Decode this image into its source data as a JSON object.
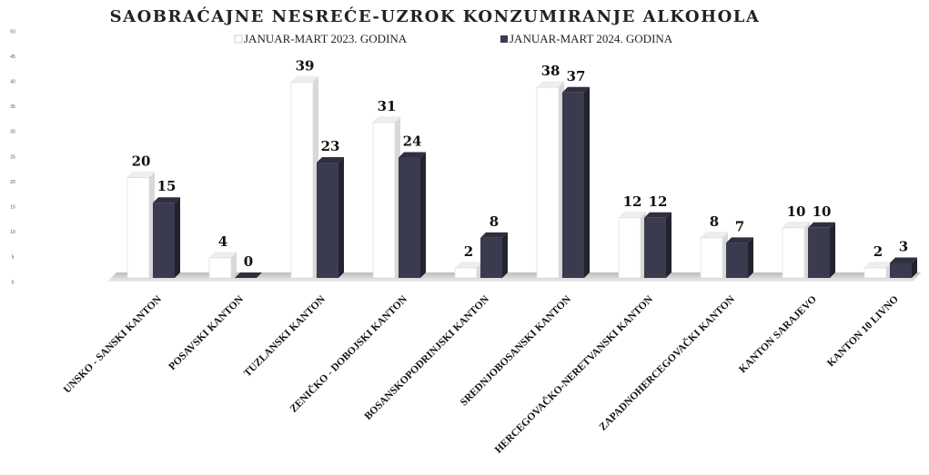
{
  "chart_data": {
    "type": "bar",
    "title": "SAOBRAĆAJNE NESREĆE-UZROK KONZUMIRANJE ALKOHOLA",
    "categories": [
      "UNSKO - SANSKI KANTON",
      "POSAVSKI KANTON",
      "TUZLANSKI KANTON",
      "ZENIČKO - DOBOJSKI KANTON",
      "BOSANSKOPODRINJSKI KANTON",
      "SREDNJOBOSANSKI KANTON",
      "HERCEGOVAČKO-NERETVANSKI KANTON",
      "ZAPADNOHERCEGOVAČKI KANTON",
      "KANTON SARAJEVO",
      "KANTON 10 LIVNO"
    ],
    "series": [
      {
        "name": "JANUAR-MART 2023. GODINA",
        "color": "#ffffff",
        "values": [
          20,
          4,
          39,
          31,
          2,
          38,
          12,
          8,
          10,
          2
        ]
      },
      {
        "name": "JANUAR-MART 2024. GODINA",
        "color": "#3b3b4f",
        "values": [
          15,
          0,
          23,
          24,
          8,
          37,
          12,
          7,
          10,
          3
        ]
      }
    ],
    "ylim": [
      0,
      50
    ],
    "yticks": [
      0,
      5,
      10,
      15,
      20,
      25,
      30,
      35,
      40,
      45,
      50
    ],
    "grid": false
  }
}
